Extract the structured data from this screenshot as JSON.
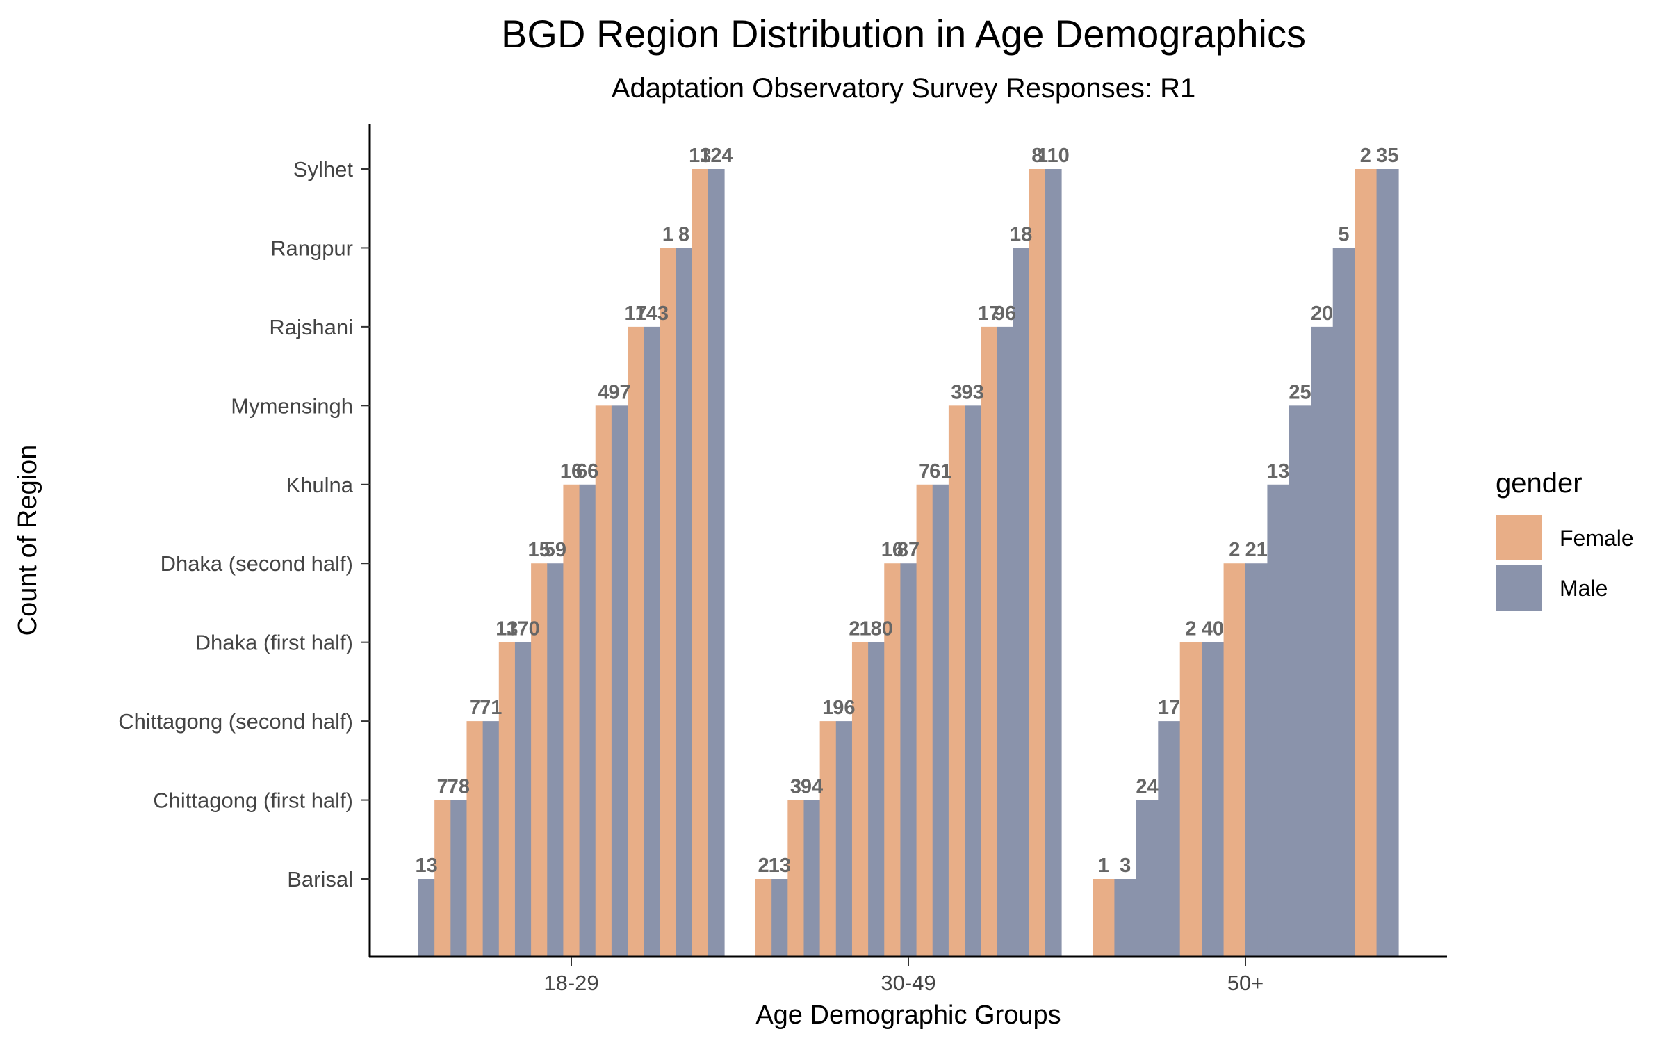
{
  "chart_data": {
    "type": "bar",
    "title": "BGD Region Distribution in Age Demographics",
    "subtitle": "Adaptation Observatory Survey Responses: R1",
    "xlabel": "Age Demographic Groups",
    "ylabel": "Count of Region",
    "x_categories": [
      "18-29",
      "30-49",
      "50+"
    ],
    "y_categories": [
      "Barisal",
      "Chittagong (first half)",
      "Chittagong (second half)",
      "Dhaka (first half)",
      "Dhaka (second half)",
      "Khulna",
      "Mymensingh",
      "Rajshani",
      "Rangpur",
      "Sylhet"
    ],
    "legend": {
      "title": "gender",
      "position": "right",
      "entries": [
        {
          "name": "Female",
          "color": "#E8AE87"
        },
        {
          "name": "Male",
          "color": "#8A93AB"
        }
      ]
    },
    "groups": [
      {
        "x": "18-29",
        "bars": [
          {
            "gender": "Male",
            "region": "Barisal",
            "label": "13"
          },
          {
            "gender": "Female",
            "region": "Chittagong (first half)",
            "label": "7"
          },
          {
            "gender": "Male",
            "region": "Chittagong (first half)",
            "label": "78"
          },
          {
            "gender": "Female",
            "region": "Chittagong (second half)",
            "label": "7"
          },
          {
            "gender": "Male",
            "region": "Chittagong (second half)",
            "label": "71"
          },
          {
            "gender": "Female",
            "region": "Dhaka (first half)",
            "label": "13"
          },
          {
            "gender": "Male",
            "region": "Dhaka (first half)",
            "label": "170"
          },
          {
            "gender": "Female",
            "region": "Dhaka (second half)",
            "label": "15"
          },
          {
            "gender": "Male",
            "region": "Dhaka (second half)",
            "label": "59"
          },
          {
            "gender": "Female",
            "region": "Khulna",
            "label": "16"
          },
          {
            "gender": "Male",
            "region": "Khulna",
            "label": "66"
          },
          {
            "gender": "Female",
            "region": "Mymensingh",
            "label": "4"
          },
          {
            "gender": "Male",
            "region": "Mymensingh",
            "label": "97"
          },
          {
            "gender": "Female",
            "region": "Rajshani",
            "label": "17"
          },
          {
            "gender": "Male",
            "region": "Rajshani",
            "label": "143"
          },
          {
            "gender": "Female",
            "region": "Rangpur",
            "label": "1"
          },
          {
            "gender": "Male",
            "region": "Rangpur",
            "label": "8"
          },
          {
            "gender": "Female",
            "region": "Sylhet",
            "label": "13"
          },
          {
            "gender": "Male",
            "region": "Sylhet",
            "label": "124"
          }
        ]
      },
      {
        "x": "30-49",
        "bars": [
          {
            "gender": "Female",
            "region": "Barisal",
            "label": "2"
          },
          {
            "gender": "Male",
            "region": "Barisal",
            "label": "13"
          },
          {
            "gender": "Female",
            "region": "Chittagong (first half)",
            "label": "3"
          },
          {
            "gender": "Male",
            "region": "Chittagong (first half)",
            "label": "94"
          },
          {
            "gender": "Female",
            "region": "Chittagong (second half)",
            "label": "1"
          },
          {
            "gender": "Male",
            "region": "Chittagong (second half)",
            "label": "96"
          },
          {
            "gender": "Female",
            "region": "Dhaka (first half)",
            "label": "21"
          },
          {
            "gender": "Male",
            "region": "Dhaka (first half)",
            "label": "180"
          },
          {
            "gender": "Female",
            "region": "Dhaka (second half)",
            "label": "16"
          },
          {
            "gender": "Male",
            "region": "Dhaka (second half)",
            "label": "87"
          },
          {
            "gender": "Female",
            "region": "Khulna",
            "label": "7"
          },
          {
            "gender": "Male",
            "region": "Khulna",
            "label": "61"
          },
          {
            "gender": "Female",
            "region": "Mymensingh",
            "label": "3"
          },
          {
            "gender": "Male",
            "region": "Mymensingh",
            "label": "93"
          },
          {
            "gender": "Female",
            "region": "Rajshani",
            "label": "17"
          },
          {
            "gender": "Male",
            "region": "Rajshani",
            "label": "96"
          },
          {
            "gender": "Male",
            "region": "Rangpur",
            "label": "18"
          },
          {
            "gender": "Female",
            "region": "Sylhet",
            "label": "8"
          },
          {
            "gender": "Male",
            "region": "Sylhet",
            "label": "110"
          }
        ]
      },
      {
        "x": "50+",
        "bars": [
          {
            "gender": "Female",
            "region": "Barisal",
            "label": "1"
          },
          {
            "gender": "Male",
            "region": "Barisal",
            "label": "3"
          },
          {
            "gender": "Male",
            "region": "Chittagong (first half)",
            "label": "24"
          },
          {
            "gender": "Male",
            "region": "Chittagong (second half)",
            "label": "17"
          },
          {
            "gender": "Female",
            "region": "Dhaka (first half)",
            "label": "2"
          },
          {
            "gender": "Male",
            "region": "Dhaka (first half)",
            "label": "40"
          },
          {
            "gender": "Female",
            "region": "Dhaka (second half)",
            "label": "2"
          },
          {
            "gender": "Male",
            "region": "Dhaka (second half)",
            "label": "21"
          },
          {
            "gender": "Male",
            "region": "Khulna",
            "label": "13"
          },
          {
            "gender": "Male",
            "region": "Mymensingh",
            "label": "25"
          },
          {
            "gender": "Male",
            "region": "Rajshani",
            "label": "20"
          },
          {
            "gender": "Male",
            "region": "Rangpur",
            "label": "5"
          },
          {
            "gender": "Female",
            "region": "Sylhet",
            "label": "2"
          },
          {
            "gender": "Male",
            "region": "Sylhet",
            "label": "35"
          }
        ]
      }
    ]
  }
}
